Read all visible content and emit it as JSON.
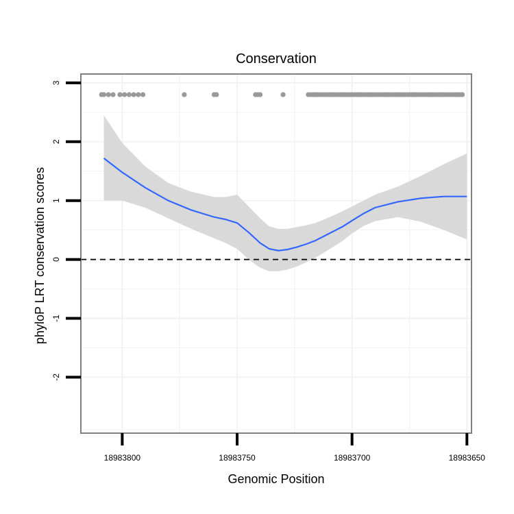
{
  "chart_data": {
    "type": "scatter",
    "title": "Conservation",
    "xlabel": "Genomic Position",
    "ylabel": "phyloP LRT conservation scores",
    "x_reversed": true,
    "xlim": [
      18983818,
      18983648
    ],
    "ylim": [
      -2.95,
      3.15
    ],
    "x_ticks": [
      {
        "value": 18983800,
        "label": "18983800"
      },
      {
        "value": 18983750,
        "label": "18983750"
      },
      {
        "value": 18983700,
        "label": "18983700"
      },
      {
        "value": 18983650,
        "label": "18983650"
      }
    ],
    "y_ticks": [
      {
        "value": 3,
        "label": "3"
      },
      {
        "value": 2,
        "label": "2"
      },
      {
        "value": 1,
        "label": "1"
      },
      {
        "value": 0,
        "label": "0"
      },
      {
        "value": -1,
        "label": "-1"
      },
      {
        "value": -2,
        "label": "-2"
      }
    ],
    "reference_line": {
      "y": 0,
      "style": "dashed",
      "color": "#000000"
    },
    "colors": {
      "points": "#999999",
      "smooth": "#3366ff",
      "ribbon": "#d9d9d9",
      "panel_border": "#7f7f7f",
      "grid": "#f2f2f2"
    },
    "smooth": {
      "x": [
        18983808,
        18983800,
        18983790,
        18983780,
        18983770,
        18983760,
        18983755,
        18983750,
        18983745,
        18983740,
        18983736,
        18983732,
        18983728,
        18983724,
        18983720,
        18983716,
        18983712,
        18983708,
        18983704,
        18983700,
        18983695,
        18983690,
        18983680,
        18983670,
        18983660,
        18983650
      ],
      "y": [
        1.72,
        1.48,
        1.22,
        1.0,
        0.84,
        0.72,
        0.68,
        0.62,
        0.46,
        0.28,
        0.18,
        0.15,
        0.17,
        0.21,
        0.26,
        0.32,
        0.4,
        0.48,
        0.56,
        0.66,
        0.78,
        0.88,
        0.98,
        1.04,
        1.07,
        1.07
      ],
      "lower": [
        1.0,
        1.0,
        0.88,
        0.7,
        0.52,
        0.36,
        0.28,
        0.18,
        0.0,
        -0.14,
        -0.2,
        -0.2,
        -0.17,
        -0.12,
        -0.05,
        0.03,
        0.12,
        0.22,
        0.32,
        0.44,
        0.57,
        0.65,
        0.72,
        0.64,
        0.5,
        0.34
      ],
      "upper": [
        2.45,
        1.98,
        1.58,
        1.3,
        1.15,
        1.06,
        1.06,
        1.1,
        0.9,
        0.7,
        0.56,
        0.52,
        0.52,
        0.55,
        0.58,
        0.62,
        0.68,
        0.75,
        0.82,
        0.9,
        1.0,
        1.1,
        1.24,
        1.42,
        1.62,
        1.8
      ]
    },
    "points": {
      "x": [
        18983809,
        18983808,
        18983806,
        18983804,
        18983801,
        18983799,
        18983797,
        18983795,
        18983793,
        18983791,
        18983773,
        18983760,
        18983759,
        18983742,
        18983741,
        18983740,
        18983730,
        18983719,
        18983718,
        18983717,
        18983716,
        18983715,
        18983714,
        18983713,
        18983712,
        18983711,
        18983710,
        18983709,
        18983708,
        18983707,
        18983706,
        18983705,
        18983704,
        18983703,
        18983702,
        18983701,
        18983700,
        18983699,
        18983698,
        18983697,
        18983696,
        18983695,
        18983694,
        18983693,
        18983692,
        18983691,
        18983690,
        18983689,
        18983688,
        18983687,
        18983686,
        18983685,
        18983684,
        18983683,
        18983682,
        18983681,
        18983680,
        18983679,
        18983678,
        18983677,
        18983676,
        18983675,
        18983674,
        18983673,
        18983672,
        18983671,
        18983670,
        18983669,
        18983668,
        18983667,
        18983666,
        18983665,
        18983664,
        18983663,
        18983662,
        18983661,
        18983660,
        18983659,
        18983658,
        18983657,
        18983656,
        18983655,
        18983654,
        18983653,
        18983652
      ],
      "y": [
        2.8,
        2.8,
        2.8,
        2.8,
        2.8,
        2.8,
        2.8,
        2.8,
        2.8,
        2.8,
        2.8,
        2.8,
        2.8,
        2.8,
        2.8,
        2.8,
        2.8,
        2.8,
        2.8,
        2.8,
        2.8,
        2.8,
        2.8,
        2.8,
        2.8,
        2.8,
        2.8,
        2.8,
        2.8,
        2.8,
        2.8,
        2.8,
        2.8,
        2.8,
        2.8,
        2.8,
        2.8,
        2.8,
        2.8,
        2.8,
        2.8,
        2.8,
        2.8,
        2.8,
        2.8,
        2.8,
        2.8,
        2.8,
        2.8,
        2.8,
        2.8,
        2.8,
        2.8,
        2.8,
        2.8,
        2.8,
        2.8,
        2.8,
        2.8,
        2.8,
        2.8,
        2.8,
        2.8,
        2.8,
        2.8,
        2.8,
        2.8,
        2.8,
        2.8,
        2.8,
        2.8,
        2.8,
        2.8,
        2.8,
        2.8,
        2.8,
        2.8,
        2.8,
        2.8,
        2.8,
        2.8,
        2.8,
        2.8,
        2.8,
        2.8
      ]
    }
  }
}
